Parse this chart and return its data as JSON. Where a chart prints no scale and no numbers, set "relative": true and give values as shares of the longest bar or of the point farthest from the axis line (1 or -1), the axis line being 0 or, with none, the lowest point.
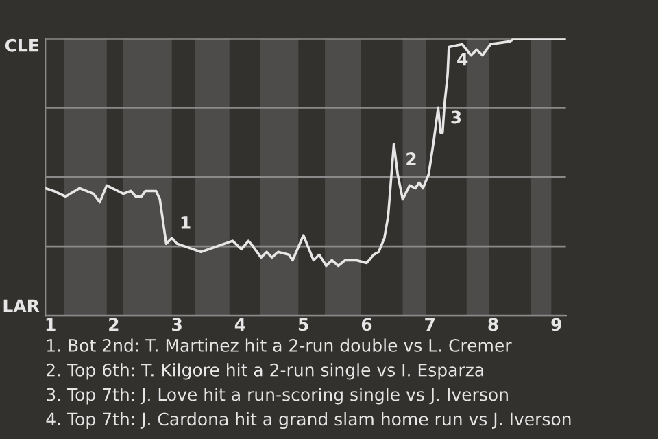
{
  "chart_data": {
    "type": "line",
    "relative": true,
    "x": [
      0.92,
      1.05,
      1.24,
      1.46,
      1.68,
      1.78,
      1.89,
      2.15,
      2.27,
      2.35,
      2.44,
      2.5,
      2.67,
      2.73,
      2.83,
      2.92,
      3.0,
      3.38,
      3.88,
      4.02,
      4.13,
      4.17,
      4.33,
      4.42,
      4.5,
      4.6,
      4.77,
      4.83,
      5.0,
      5.16,
      5.25,
      5.36,
      5.45,
      5.55,
      5.66,
      5.84,
      6.0,
      6.11,
      6.19,
      6.28,
      6.34,
      6.43,
      6.49,
      6.57,
      6.68,
      6.77,
      6.83,
      6.89,
      6.98,
      7.06,
      7.13,
      7.17,
      7.2,
      7.23,
      7.28,
      7.3,
      7.51,
      7.65,
      7.74,
      7.83,
      7.96,
      8.27,
      8.33,
      9.15
    ],
    "series": [
      {
        "color": "#e6e6e6",
        "values": [
          0.46,
          0.45,
          0.43,
          0.46,
          0.44,
          0.41,
          0.47,
          0.44,
          0.45,
          0.43,
          0.43,
          0.45,
          0.45,
          0.42,
          0.26,
          0.28,
          0.26,
          0.23,
          0.27,
          0.24,
          0.27,
          0.26,
          0.21,
          0.23,
          0.21,
          0.23,
          0.22,
          0.2,
          0.29,
          0.2,
          0.22,
          0.18,
          0.2,
          0.18,
          0.2,
          0.2,
          0.19,
          0.22,
          0.23,
          0.28,
          0.36,
          0.62,
          0.51,
          0.42,
          0.47,
          0.46,
          0.48,
          0.46,
          0.51,
          0.63,
          0.75,
          0.66,
          0.66,
          0.76,
          0.87,
          0.97,
          0.98,
          0.94,
          0.96,
          0.94,
          0.98,
          0.99,
          1.0,
          1.0
        ]
      }
    ],
    "xlim": [
      0.92,
      9.15
    ],
    "xticks": [
      1,
      2,
      3,
      4,
      5,
      6,
      7,
      8,
      9
    ],
    "grid": "y",
    "bands": [
      {
        "axis": "x",
        "from": 1.22,
        "to": 1.89,
        "color": "#4d4c4a"
      },
      {
        "axis": "x",
        "from": 2.15,
        "to": 2.92,
        "color": "#4d4c4a"
      },
      {
        "axis": "x",
        "from": 3.29,
        "to": 3.83,
        "color": "#4d4c4a"
      },
      {
        "axis": "x",
        "from": 4.31,
        "to": 4.92,
        "color": "#4d4c4a"
      },
      {
        "axis": "x",
        "from": 5.34,
        "to": 5.91,
        "color": "#4d4c4a"
      },
      {
        "axis": "x",
        "from": 6.57,
        "to": 6.94,
        "color": "#4d4c4a"
      },
      {
        "axis": "x",
        "from": 7.58,
        "to": 7.94,
        "color": "#4d4c4a"
      },
      {
        "axis": "x",
        "from": 8.6,
        "to": 8.92,
        "color": "#4d4c4a"
      }
    ],
    "annotations": [
      "CLE",
      "LAR",
      {
        "text": "1",
        "x": 2.92,
        "y": 0.28
      },
      {
        "text": "2",
        "x": 6.49,
        "y": 0.51
      },
      {
        "text": "3",
        "x": 7.2,
        "y": 0.66
      },
      {
        "text": "4",
        "x": 7.3,
        "y": 0.87
      },
      "1. Bot 2nd: T. Martinez hit a 2-run double vs L. Cremer",
      "2. Top 6th: T. Kilgore hit a 2-run single vs I. Esparza",
      "3. Top 7th: J. Love hit a run-scoring single vs J. Iverson",
      "4. Top 7th: J. Cardona hit a grand slam home run vs J. Iverson"
    ]
  }
}
